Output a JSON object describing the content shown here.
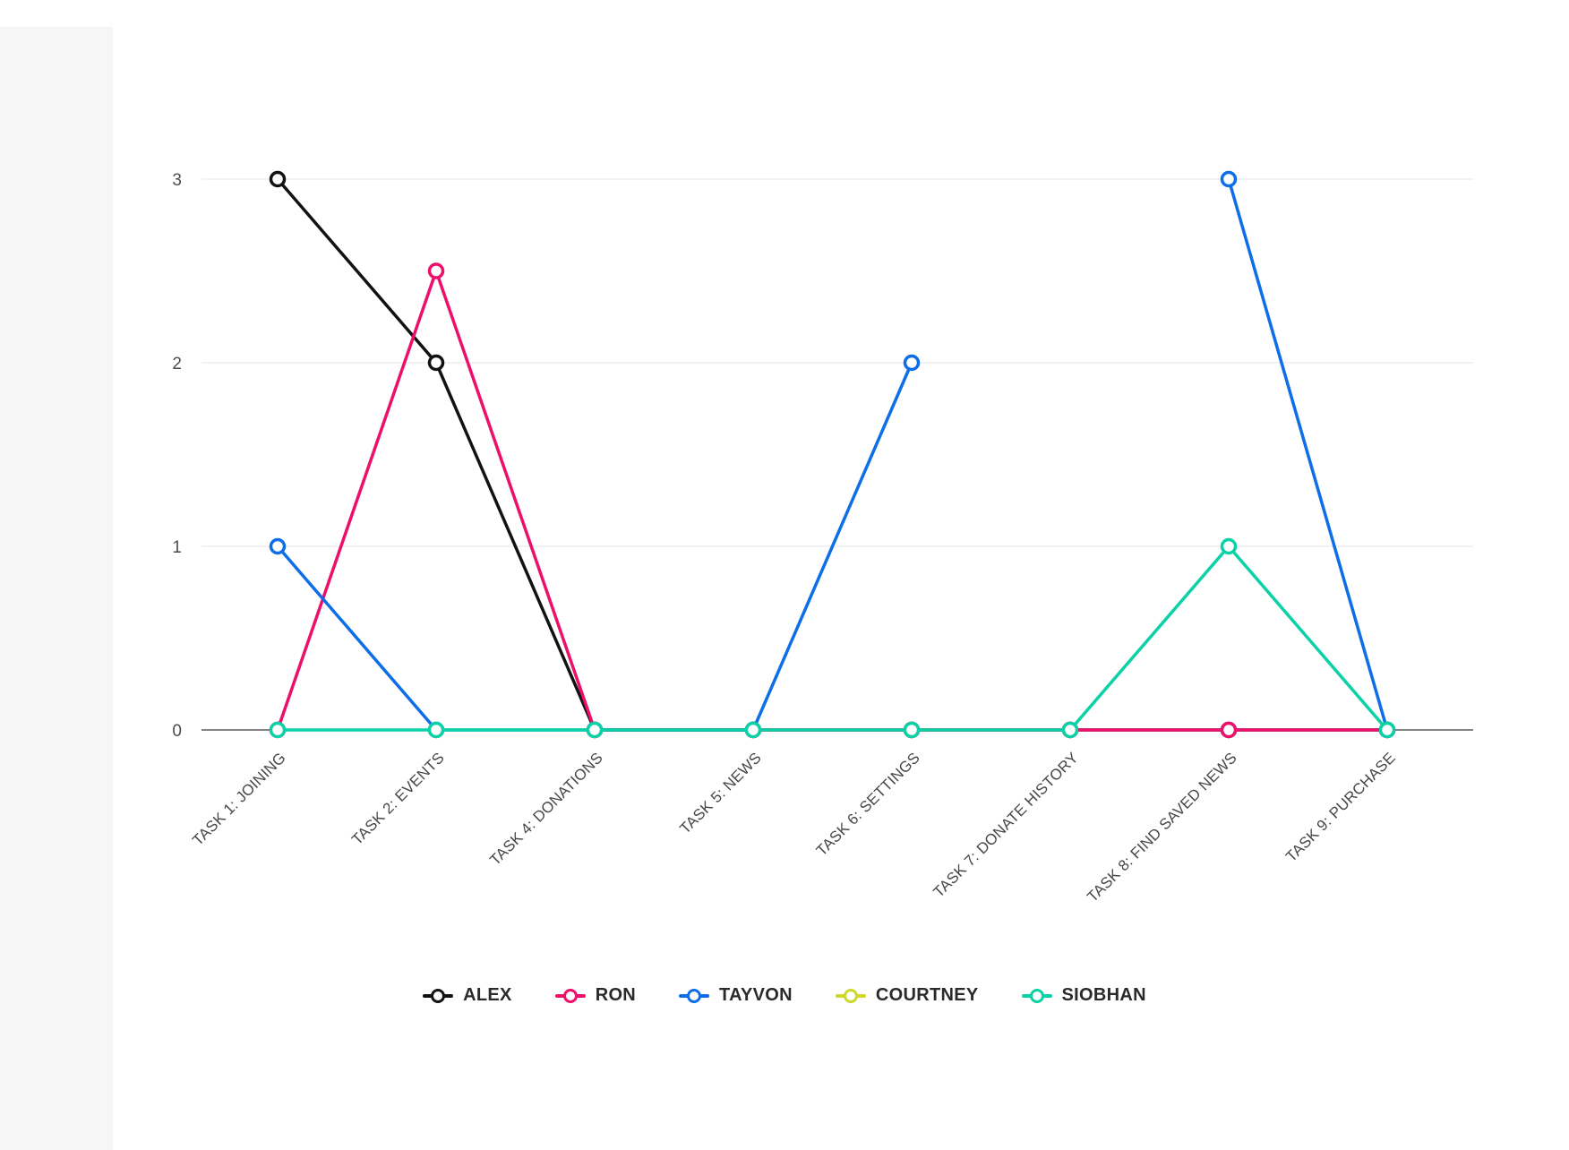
{
  "page": {
    "background": "#ffffff",
    "gutter_color": "#f6f6f6"
  },
  "chart_data": {
    "type": "line",
    "title": "",
    "categories": [
      "TASK 1: JOINING",
      "TASK 2: EVENTS",
      "TASK 4: DONATIONS",
      "TASK 5: NEWS",
      "TASK 6: SETTINGS",
      "TASK 7: DONATE HISTORY",
      "TASK 8: FIND SAVED NEWS",
      "TASK 9: PURCHASE"
    ],
    "series": [
      {
        "name": "ALEX",
        "color": "#121212",
        "values": [
          3,
          2,
          0,
          0,
          0,
          0,
          0,
          0
        ]
      },
      {
        "name": "RON",
        "color": "#ec106c",
        "values": [
          0,
          2.5,
          0,
          0,
          0,
          0,
          0,
          0
        ]
      },
      {
        "name": "TAYVON",
        "color": "#0d6ee8",
        "values": [
          1,
          0,
          0,
          0,
          2,
          null,
          3,
          0
        ]
      },
      {
        "name": "COURTNEY",
        "color": "#cdda2b",
        "values": [
          null,
          null,
          null,
          null,
          null,
          null,
          null,
          null
        ]
      },
      {
        "name": "SIOBHAN",
        "color": "#0bd2a6",
        "values": [
          0,
          0,
          0,
          0,
          0,
          0,
          1,
          0
        ]
      }
    ],
    "ylim": [
      0,
      3
    ],
    "yticks": [
      0,
      1,
      2,
      3
    ],
    "xlabel": "",
    "ylabel": "",
    "grid": "horizontal-only",
    "legend_position": "bottom",
    "axis_color": "#5c5c5c",
    "gridline_color": "#ededed",
    "tick_label_color": "#4d4d4d",
    "marker_style": "open-circle",
    "x_label_rotation_deg": -45
  }
}
